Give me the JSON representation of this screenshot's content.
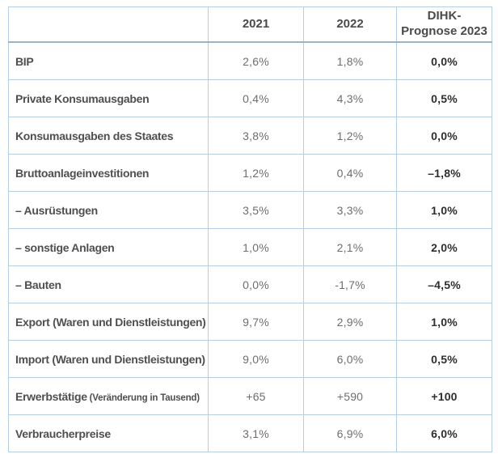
{
  "table": {
    "header": {
      "col_label": "",
      "col_2021": "2021",
      "col_2022": "2022",
      "col_prognose": "DIHK-Prognose 2023"
    },
    "rows": [
      {
        "label": "BIP",
        "note": "",
        "y2021": "2,6%",
        "y2022": "1,8%",
        "prognose": "0,0%"
      },
      {
        "label": "Private Konsumausgaben",
        "note": "",
        "y2021": "0,4%",
        "y2022": "4,3%",
        "prognose": "0,5%"
      },
      {
        "label": "Konsumausgaben des Staates",
        "note": "",
        "y2021": "3,8%",
        "y2022": "1,2%",
        "prognose": "0,0%"
      },
      {
        "label": "Bruttoanlageinvestitionen",
        "note": "",
        "y2021": "1,2%",
        "y2022": "0,4%",
        "prognose": "–1,8%"
      },
      {
        "label": "– Ausrüstungen",
        "note": "",
        "y2021": "3,5%",
        "y2022": "3,3%",
        "prognose": "1,0%"
      },
      {
        "label": "– sonstige Anlagen",
        "note": "",
        "y2021": "1,0%",
        "y2022": "2,1%",
        "prognose": "2,0%"
      },
      {
        "label": "– Bauten",
        "note": "",
        "y2021": "0,0%",
        "y2022": "-1,7%",
        "prognose": "–4,5%"
      },
      {
        "label": "Export (Waren und Dienstleistungen)",
        "note": "",
        "y2021": "9,7%",
        "y2022": "2,9%",
        "prognose": "1,0%"
      },
      {
        "label": "Import (Waren und Dienstleistungen)",
        "note": "",
        "y2021": "9,0%",
        "y2022": "6,0%",
        "prognose": "0,5%"
      },
      {
        "label": "Erwerbstätige",
        "note": "(Veränderung in Tausend)",
        "y2021": "+65",
        "y2022": "+590",
        "prognose": "+100"
      },
      {
        "label": "Verbraucherpreise",
        "note": "",
        "y2021": "3,1%",
        "y2022": "6,9%",
        "prognose": "6,0%"
      }
    ]
  },
  "colors": {
    "border_thin": "#b5cde6",
    "border_header_bottom": "#97b2d3",
    "header_text": "#4a4a4a",
    "label_text": "#4f4f4f",
    "value_text": "#6e6e6e",
    "prognose_text": "#2e2e2e",
    "background": "#ffffff"
  },
  "chart_data": {
    "type": "table",
    "title": "DIHK-Prognose 2023 Konjunkturtabelle",
    "columns": [
      "",
      "2021",
      "2022",
      "DIHK-Prognose 2023"
    ],
    "rows": [
      [
        "BIP",
        "2,6%",
        "1,8%",
        "0,0%"
      ],
      [
        "Private Konsumausgaben",
        "0,4%",
        "4,3%",
        "0,5%"
      ],
      [
        "Konsumausgaben des Staates",
        "3,8%",
        "1,2%",
        "0,0%"
      ],
      [
        "Bruttoanlageinvestitionen",
        "1,2%",
        "0,4%",
        "–1,8%"
      ],
      [
        "– Ausrüstungen",
        "3,5%",
        "3,3%",
        "1,0%"
      ],
      [
        "– sonstige Anlagen",
        "1,0%",
        "2,1%",
        "2,0%"
      ],
      [
        "– Bauten",
        "0,0%",
        "-1,7%",
        "–4,5%"
      ],
      [
        "Export (Waren und Dienstleistungen)",
        "9,7%",
        "2,9%",
        "1,0%"
      ],
      [
        "Import (Waren und Dienstleistungen)",
        "9,0%",
        "6,0%",
        "0,5%"
      ],
      [
        "Erwerbstätige (Veränderung in Tausend)",
        "+65",
        "+590",
        "+100"
      ],
      [
        "Verbraucherpreise",
        "3,1%",
        "6,9%",
        "6,0%"
      ]
    ]
  }
}
